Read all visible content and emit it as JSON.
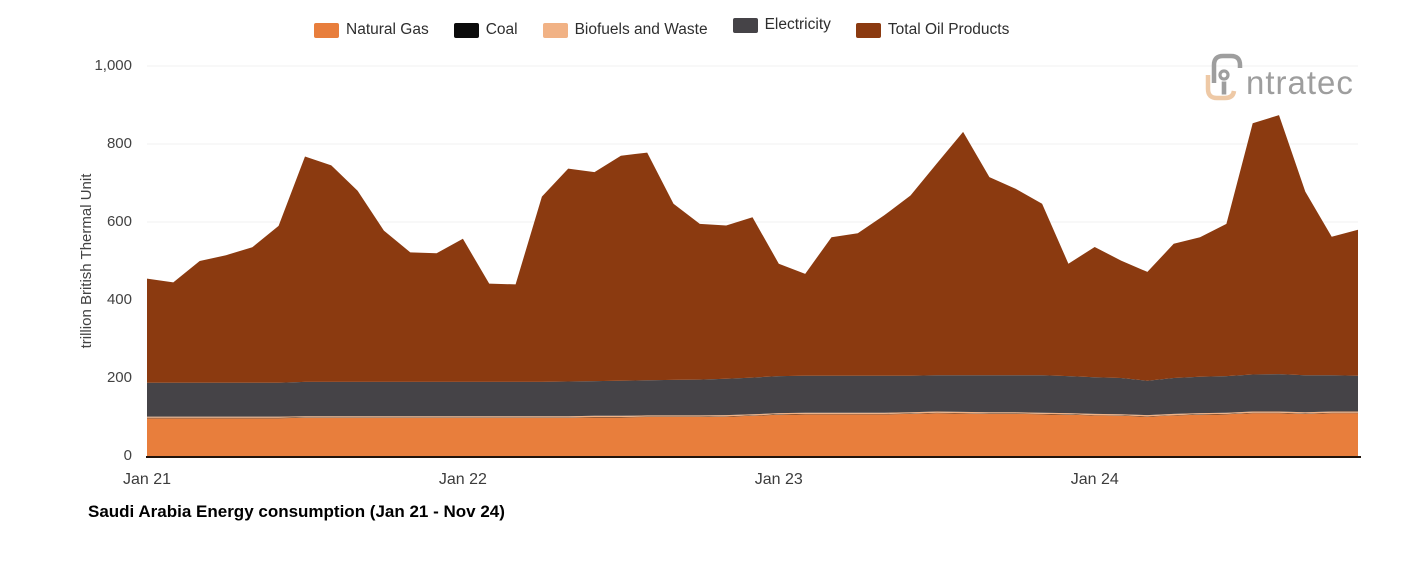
{
  "logo": {
    "text": "intratec"
  },
  "chart_data": {
    "type": "area",
    "stacked": true,
    "title": "Saudi Arabia Energy consumption (Jan 21 - Nov 24)",
    "xlabel": "",
    "ylabel": "trillion British Thermal Unit",
    "ylim": [
      0,
      1000
    ],
    "grid": true,
    "legend_position": "top",
    "baseline_color": "#20130b",
    "gridline_color": "#f0f0f0",
    "x": [
      "Jan 21",
      "Feb 21",
      "Mar 21",
      "Apr 21",
      "May 21",
      "Jun 21",
      "Jul 21",
      "Aug 21",
      "Sep 21",
      "Oct 21",
      "Nov 21",
      "Dec 21",
      "Jan 22",
      "Feb 22",
      "Mar 22",
      "Apr 22",
      "May 22",
      "Jun 22",
      "Jul 22",
      "Aug 22",
      "Sep 22",
      "Oct 22",
      "Nov 22",
      "Dec 22",
      "Jan 23",
      "Feb 23",
      "Mar 23",
      "Apr 23",
      "May 23",
      "Jun 23",
      "Jul 23",
      "Aug 23",
      "Sep 23",
      "Oct 23",
      "Nov 23",
      "Dec 23",
      "Jan 24",
      "Feb 24",
      "Mar 24",
      "Apr 24",
      "May 24",
      "Jun 24",
      "Jul 24",
      "Aug 24",
      "Sep 24",
      "Oct 24",
      "Nov 24"
    ],
    "x_ticks": [
      {
        "label": "Jan 21",
        "index": 0
      },
      {
        "label": "Jan 22",
        "index": 12
      },
      {
        "label": "Jan 23",
        "index": 24
      },
      {
        "label": "Jan 24",
        "index": 36
      }
    ],
    "y_ticks": [
      {
        "label": "0",
        "value": 0
      },
      {
        "label": "200",
        "value": 200
      },
      {
        "label": "400",
        "value": 400
      },
      {
        "label": "600",
        "value": 600
      },
      {
        "label": "800",
        "value": 800
      },
      {
        "label": "1,000",
        "value": 1000
      }
    ],
    "series": [
      {
        "id": "natural-gas",
        "name": "Natural Gas",
        "color": "#E87E3C",
        "values": [
          97,
          97,
          97,
          97,
          97,
          97,
          98,
          98,
          98,
          98,
          98,
          98,
          98,
          98,
          98,
          98,
          98,
          99,
          99,
          100,
          100,
          100,
          101,
          103,
          106,
          107,
          107,
          107,
          107,
          108,
          110,
          109,
          108,
          108,
          107,
          106,
          104,
          103,
          101,
          104,
          106,
          107,
          110,
          110,
          108,
          110,
          110
        ]
      },
      {
        "id": "coal",
        "name": "Coal",
        "color": "#0B0B0B",
        "values": [
          1,
          1,
          1,
          1,
          1,
          1,
          1,
          1,
          1,
          1,
          1,
          1,
          1,
          1,
          1,
          1,
          1,
          1,
          1,
          1,
          1,
          1,
          1,
          1,
          1,
          1,
          1,
          1,
          1,
          1,
          1,
          1,
          1,
          1,
          1,
          1,
          1,
          1,
          1,
          1,
          1,
          1,
          1,
          1,
          1,
          1,
          1
        ]
      },
      {
        "id": "biofuels-and-waste",
        "name": "Biofuels and Waste",
        "color": "#F1B285",
        "values": [
          3,
          3,
          3,
          3,
          3,
          3,
          3,
          3,
          3,
          3,
          3,
          3,
          3,
          3,
          3,
          3,
          3,
          3,
          3,
          3,
          3,
          3,
          3,
          3,
          3,
          3,
          3,
          3,
          3,
          3,
          3,
          3,
          3,
          3,
          3,
          3,
          3,
          3,
          3,
          3,
          3,
          3,
          3,
          3,
          3,
          3,
          3
        ]
      },
      {
        "id": "electricity",
        "name": "Electricity",
        "color": "#454347",
        "values": [
          87,
          87,
          87,
          87,
          87,
          87,
          88,
          88,
          88,
          88,
          88,
          88,
          88,
          88,
          88,
          88,
          89,
          89,
          90,
          90,
          91,
          92,
          93,
          94,
          95,
          95,
          95,
          95,
          95,
          94,
          93,
          94,
          95,
          95,
          96,
          95,
          94,
          93,
          88,
          92,
          93,
          94,
          95,
          96,
          95,
          93,
          92
        ]
      },
      {
        "id": "total-oil-products",
        "name": "Total Oil Products",
        "color": "#8B3A10",
        "values": [
          267,
          257,
          312,
          327,
          347,
          402,
          578,
          555,
          490,
          388,
          332,
          330,
          367,
          252,
          250,
          475,
          546,
          536,
          577,
          584,
          452,
          399,
          393,
          411,
          288,
          261,
          355,
          365,
          411,
          462,
          543,
          624,
          508,
          478,
          440,
          288,
          334,
          301,
          279,
          344,
          358,
          390,
          644,
          664,
          471,
          355,
          374
        ]
      }
    ]
  }
}
